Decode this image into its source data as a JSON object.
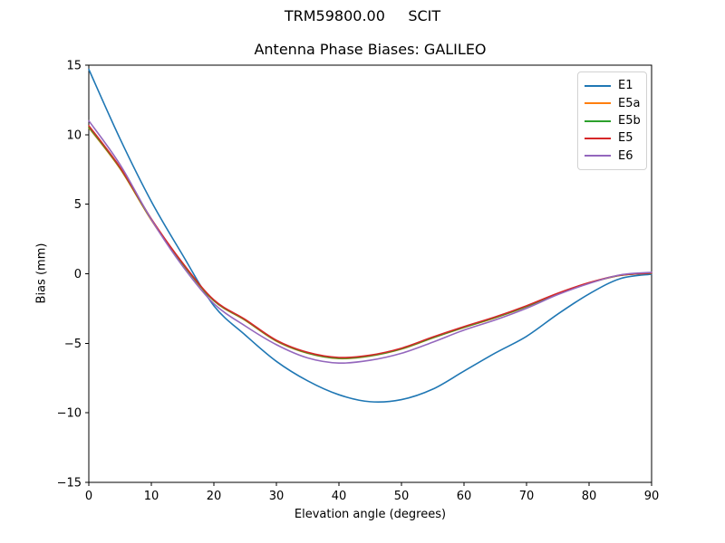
{
  "figure": {
    "suptitle": "TRM59800.00     SCIT",
    "background": "#ffffff"
  },
  "chart_data": {
    "type": "line",
    "title": "Antenna Phase Biases: GALILEO",
    "xlabel": "Elevation angle (degrees)",
    "ylabel": "Bias (mm)",
    "xlim": [
      0,
      90
    ],
    "ylim": [
      -15,
      15
    ],
    "xticks": [
      0,
      10,
      20,
      30,
      40,
      50,
      60,
      70,
      80,
      90
    ],
    "yticks": [
      -15,
      -10,
      -5,
      0,
      5,
      10,
      15
    ],
    "grid": false,
    "legend_position": "upper right",
    "axis_color": "#000000",
    "x": [
      0,
      5,
      10,
      15,
      20,
      25,
      30,
      35,
      40,
      45,
      50,
      55,
      60,
      65,
      70,
      75,
      80,
      85,
      90
    ],
    "series": [
      {
        "name": "E1",
        "color": "#1f77b4",
        "values": [
          14.7,
          9.7,
          5.2,
          1.35,
          -2.3,
          -4.4,
          -6.3,
          -7.7,
          -8.7,
          -9.2,
          -9.05,
          -8.3,
          -7.0,
          -5.7,
          -4.5,
          -2.9,
          -1.45,
          -0.35,
          -0.03
        ]
      },
      {
        "name": "E5a",
        "color": "#ff7f0e",
        "values": [
          10.5,
          7.55,
          3.85,
          0.7,
          -1.95,
          -3.35,
          -4.85,
          -5.72,
          -6.1,
          -5.92,
          -5.42,
          -4.62,
          -3.87,
          -3.17,
          -2.37,
          -1.43,
          -0.67,
          -0.12,
          0.04
        ]
      },
      {
        "name": "E5b",
        "color": "#2ca02c",
        "values": [
          10.55,
          7.6,
          3.9,
          0.72,
          -1.93,
          -3.32,
          -4.82,
          -5.7,
          -6.08,
          -5.9,
          -5.4,
          -4.6,
          -3.85,
          -3.15,
          -2.35,
          -1.42,
          -0.66,
          -0.11,
          0.04
        ]
      },
      {
        "name": "E5",
        "color": "#d62728",
        "values": [
          10.65,
          7.65,
          3.95,
          0.78,
          -1.88,
          -3.28,
          -4.78,
          -5.65,
          -6.02,
          -5.85,
          -5.35,
          -4.55,
          -3.8,
          -3.1,
          -2.3,
          -1.4,
          -0.64,
          -0.1,
          0.05
        ]
      },
      {
        "name": "E6",
        "color": "#9467bd",
        "values": [
          11.0,
          7.85,
          3.9,
          0.55,
          -2.15,
          -3.75,
          -5.1,
          -6.05,
          -6.42,
          -6.22,
          -5.72,
          -4.92,
          -4.05,
          -3.32,
          -2.48,
          -1.5,
          -0.7,
          -0.08,
          0.1
        ]
      }
    ]
  }
}
